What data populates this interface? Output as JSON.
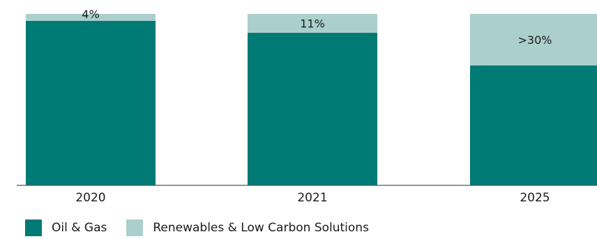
{
  "chart_data": {
    "type": "bar",
    "stacked": true,
    "percent_stacked": true,
    "categories": [
      "2020",
      "2021",
      "2025"
    ],
    "series": [
      {
        "name": "Oil & Gas",
        "values": [
          96,
          89,
          70
        ],
        "color": "#007a74"
      },
      {
        "name": "Renewables & Low Carbon Solutions",
        "values": [
          4,
          11,
          30
        ],
        "color": "#abcfcd"
      }
    ],
    "data_labels": [
      "4%",
      "11%",
      ">30%"
    ],
    "ylim": [
      0,
      100
    ],
    "grid": false,
    "legend_position": "bottom-left",
    "title": "",
    "xlabel": "",
    "ylabel": ""
  }
}
